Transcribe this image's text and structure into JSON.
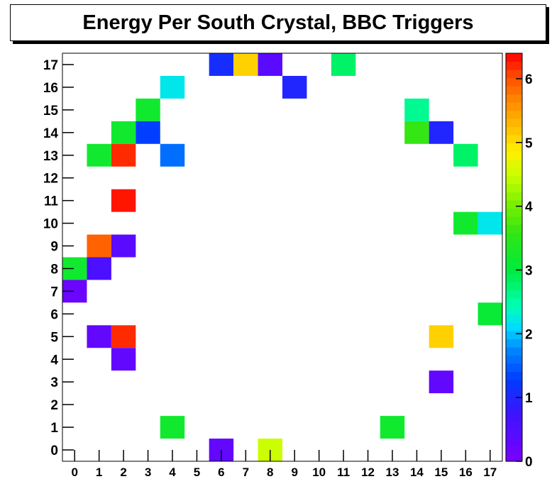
{
  "chart_data": {
    "type": "heatmap",
    "title": "Energy Per South Crystal, BBC Triggers",
    "xlabel": "",
    "ylabel": "",
    "x_categories": [
      "0",
      "1",
      "2",
      "3",
      "4",
      "5",
      "6",
      "7",
      "8",
      "9",
      "10",
      "11",
      "12",
      "13",
      "14",
      "15",
      "16",
      "17"
    ],
    "y_categories": [
      "0",
      "1",
      "2",
      "3",
      "4",
      "5",
      "6",
      "7",
      "8",
      "9",
      "10",
      "11",
      "12",
      "13",
      "14",
      "15",
      "16",
      "17"
    ],
    "xlim": [
      -0.5,
      17.5
    ],
    "ylim": [
      -0.5,
      17.5
    ],
    "zlim": [
      0,
      6.4
    ],
    "colorbar_ticks": [
      "0",
      "1",
      "2",
      "3",
      "4",
      "5",
      "6"
    ],
    "colorscale": "rainbow (purple to red)",
    "cells": [
      {
        "x": 6,
        "y": 17,
        "value": 1.1
      },
      {
        "x": 7,
        "y": 17,
        "value": 5.1
      },
      {
        "x": 8,
        "y": 17,
        "value": 0.4
      },
      {
        "x": 11,
        "y": 17,
        "value": 2.8
      },
      {
        "x": 9,
        "y": 16,
        "value": 1.0
      },
      {
        "x": 4,
        "y": 16,
        "value": 2.2
      },
      {
        "x": 3,
        "y": 15,
        "value": 3.2
      },
      {
        "x": 14,
        "y": 15,
        "value": 2.6
      },
      {
        "x": 2,
        "y": 14,
        "value": 3.2
      },
      {
        "x": 3,
        "y": 14,
        "value": 1.3
      },
      {
        "x": 14,
        "y": 14,
        "value": 3.6
      },
      {
        "x": 15,
        "y": 14,
        "value": 1.0
      },
      {
        "x": 1,
        "y": 13,
        "value": 3.2
      },
      {
        "x": 2,
        "y": 13,
        "value": 6.2
      },
      {
        "x": 4,
        "y": 13,
        "value": 1.6
      },
      {
        "x": 16,
        "y": 13,
        "value": 2.8
      },
      {
        "x": 2,
        "y": 11,
        "value": 6.3
      },
      {
        "x": 16,
        "y": 10,
        "value": 3.2
      },
      {
        "x": 17,
        "y": 10,
        "value": 2.2
      },
      {
        "x": 1,
        "y": 9,
        "value": 5.9
      },
      {
        "x": 2,
        "y": 9,
        "value": 0.4
      },
      {
        "x": 0,
        "y": 8,
        "value": 3.2
      },
      {
        "x": 1,
        "y": 8,
        "value": 0.6
      },
      {
        "x": 0,
        "y": 7,
        "value": 0.2
      },
      {
        "x": 17,
        "y": 6,
        "value": 3.1
      },
      {
        "x": 1,
        "y": 5,
        "value": 0.3
      },
      {
        "x": 2,
        "y": 5,
        "value": 6.2
      },
      {
        "x": 15,
        "y": 5,
        "value": 5.1
      },
      {
        "x": 2,
        "y": 4,
        "value": 0.3
      },
      {
        "x": 15,
        "y": 3,
        "value": 0.3
      },
      {
        "x": 4,
        "y": 1,
        "value": 3.2
      },
      {
        "x": 13,
        "y": 1,
        "value": 3.2
      },
      {
        "x": 6,
        "y": 0,
        "value": 0.3
      },
      {
        "x": 8,
        "y": 0,
        "value": 4.5
      }
    ]
  }
}
